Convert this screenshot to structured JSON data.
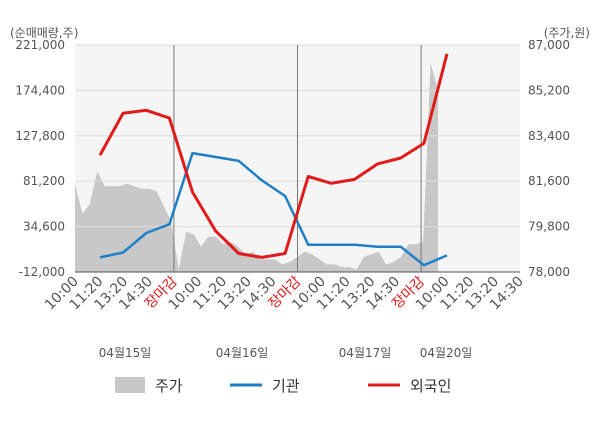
{
  "chart_data": {
    "type": "line",
    "left_axis_unit": "(순매매량,주)",
    "right_axis_unit": "(주가,원)",
    "left_ticks": [
      "221,000",
      "174,400",
      "127,800",
      "81,200",
      "34,600",
      "-12,000"
    ],
    "right_ticks": [
      "87,000",
      "85,200",
      "83,400",
      "81,600",
      "79,800",
      "78,000"
    ],
    "ylim_left": [
      -12000,
      221000
    ],
    "ylim_right": [
      78000,
      87000
    ],
    "x_labels": [
      "10:00",
      "11:20",
      "13:20",
      "14:30",
      "장마감",
      "10:00",
      "11:20",
      "13:20",
      "14:30",
      "장마감",
      "10:00",
      "11:20",
      "13:20",
      "14:30",
      "장마감",
      "10:00",
      "11:20",
      "13:20",
      "14:30"
    ],
    "date_labels": [
      "04월15일",
      "04월16일",
      "04월17일",
      "04월20일"
    ],
    "series": [
      {
        "name": "기관",
        "color": "#1f7fc6",
        "values": [
          3000,
          8000,
          28000,
          37000,
          110000,
          106000,
          102000,
          82000,
          66000,
          16000,
          16000,
          16000,
          14000,
          14000,
          -5000,
          5000
        ]
      },
      {
        "name": "외국인",
        "color": "#e01b1b",
        "values": [
          108000,
          151000,
          154000,
          146000,
          70000,
          30000,
          7000,
          3000,
          7000,
          86000,
          79000,
          83000,
          99000,
          105000,
          120000,
          212000
        ]
      }
    ],
    "price_series": {
      "name": "주가",
      "color": "#c8c8c8",
      "values": [
        81500,
        80300,
        80700,
        82000,
        81400,
        81400,
        81400,
        81500,
        81400,
        81300,
        81300,
        81200,
        80600,
        80000,
        78100,
        79600,
        79500,
        79000,
        79400,
        79400,
        79100,
        79200,
        79000,
        78700,
        78800,
        78500,
        78500,
        78500,
        78300,
        78400,
        78600,
        78800,
        78700,
        78500,
        78300,
        78300,
        78200,
        78200,
        78100,
        78600,
        78700,
        78800,
        78300,
        78400,
        78600,
        79100,
        79100,
        79200,
        86300,
        85200
      ]
    },
    "legend": [
      "주가",
      "기관",
      "외국인"
    ],
    "legend_position": "bottom"
  }
}
